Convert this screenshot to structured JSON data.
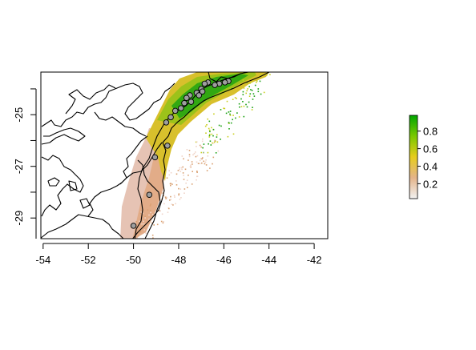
{
  "map": {
    "x_axis": {
      "ticks": [
        "-54",
        "-52",
        "-50",
        "-48",
        "-46",
        "-44",
        "-42"
      ],
      "range": [
        -54.1,
        -41.4
      ]
    },
    "y_axis": {
      "ticks": [
        "-25",
        "-27",
        "-29"
      ],
      "range": [
        -29.8,
        -23.35
      ]
    },
    "legend": {
      "ticks": [
        "0.2",
        "0.4",
        "0.6",
        "0.8"
      ],
      "range": [
        0.03,
        0.98
      ],
      "colors": [
        "#f2f2f2",
        "#e4b48a",
        "#e6cc1c",
        "#7ac800",
        "#00a600"
      ]
    },
    "coastline_color": "#000000",
    "point_fill": "#9e9e9e",
    "band": "Suitability band along the coast (values 0-1)",
    "points": [
      [
        -45.8,
        -23.7
      ],
      [
        -45.95,
        -23.75
      ],
      [
        -46.2,
        -23.8
      ],
      [
        -46.4,
        -23.85
      ],
      [
        -46.7,
        -23.75
      ],
      [
        -46.85,
        -23.8
      ],
      [
        -47.0,
        -24.0
      ],
      [
        -47.2,
        -24.15
      ],
      [
        -47.5,
        -24.25
      ],
      [
        -47.65,
        -24.35
      ],
      [
        -47.1,
        -24.25
      ],
      [
        -46.95,
        -24.1
      ],
      [
        -47.45,
        -24.5
      ],
      [
        -47.75,
        -24.55
      ],
      [
        -47.9,
        -24.75
      ],
      [
        -48.15,
        -24.85
      ],
      [
        -48.35,
        -25.1
      ],
      [
        -48.55,
        -25.3
      ],
      [
        -48.5,
        -26.2
      ],
      [
        -49.05,
        -26.65
      ],
      [
        -49.3,
        -28.1
      ],
      [
        -50.0,
        -29.3
      ]
    ]
  }
}
